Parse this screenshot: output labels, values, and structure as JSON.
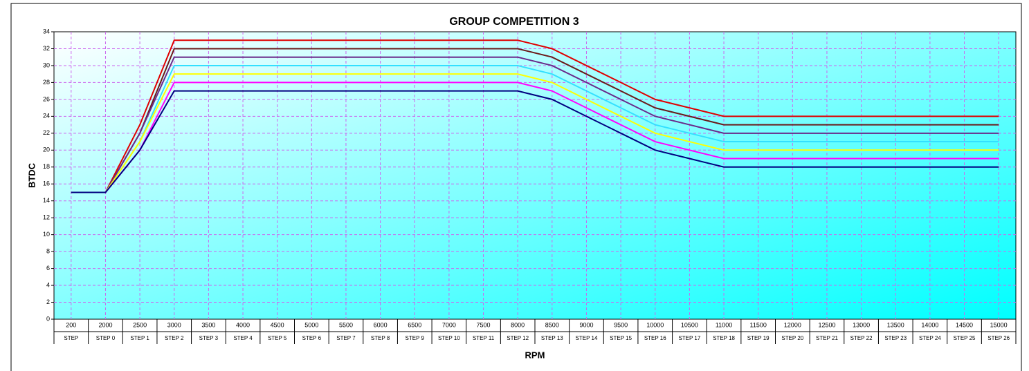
{
  "chart_data": {
    "type": "line",
    "title": "GROUP COMPETITION 3",
    "x_label": "RPM",
    "y_label": "BTDC",
    "categories": [
      "200",
      "2000",
      "2500",
      "3000",
      "3500",
      "4000",
      "4500",
      "5000",
      "5500",
      "6000",
      "6500",
      "7000",
      "7500",
      "8000",
      "8500",
      "9000",
      "9500",
      "10000",
      "10500",
      "11000",
      "11500",
      "12000",
      "12500",
      "13000",
      "13500",
      "14000",
      "14500",
      "15000"
    ],
    "steps": [
      "STEP",
      "STEP 0",
      "STEP 1",
      "STEP 2",
      "STEP 3",
      "STEP 4",
      "STEP 5",
      "STEP 6",
      "STEP 7",
      "STEP 8",
      "STEP 9",
      "STEP 10",
      "STEP 11",
      "STEP 12",
      "STEP 13",
      "STEP 14",
      "STEP 15",
      "STEP 16",
      "STEP 17",
      "STEP 18",
      "STEP 19",
      "STEP 20",
      "STEP 21",
      "STEP 22",
      "STEP 23",
      "STEP 24",
      "STEP 25",
      "STEP 26"
    ],
    "series": [
      {
        "color": "#e00000",
        "values": [
          15,
          15,
          23,
          33,
          33,
          33,
          33,
          33,
          33,
          33,
          33,
          33,
          33,
          33,
          32,
          30,
          28,
          26,
          25,
          24,
          24,
          24,
          24,
          24,
          24,
          24,
          24,
          24
        ]
      },
      {
        "color": "#6b1a1a",
        "values": [
          15,
          15,
          22,
          32,
          32,
          32,
          32,
          32,
          32,
          32,
          32,
          32,
          32,
          32,
          31,
          29,
          27,
          25,
          24,
          23,
          23,
          23,
          23,
          23,
          23,
          23,
          23,
          23
        ]
      },
      {
        "color": "#6a2a8a",
        "values": [
          15,
          15,
          22,
          31,
          31,
          31,
          31,
          31,
          31,
          31,
          31,
          31,
          31,
          31,
          30,
          28,
          26,
          24,
          23,
          22,
          22,
          22,
          22,
          22,
          22,
          22,
          22,
          22
        ]
      },
      {
        "color": "#33e0ff",
        "values": [
          15,
          15,
          21,
          30,
          30,
          30,
          30,
          30,
          30,
          30,
          30,
          30,
          30,
          30,
          29,
          27,
          25,
          23,
          22,
          21,
          21,
          21,
          21,
          21,
          21,
          21,
          21,
          21
        ]
      },
      {
        "color": "#ffff00",
        "values": [
          15,
          15,
          21,
          29,
          29,
          29,
          29,
          29,
          29,
          29,
          29,
          29,
          29,
          29,
          28,
          26,
          24,
          22,
          21,
          20,
          20,
          20,
          20,
          20,
          20,
          20,
          20,
          20
        ]
      },
      {
        "color": "#ff00ff",
        "values": [
          15,
          15,
          20,
          28,
          28,
          28,
          28,
          28,
          28,
          28,
          28,
          28,
          28,
          28,
          27,
          25,
          23,
          21,
          20,
          19,
          19,
          19,
          19,
          19,
          19,
          19,
          19,
          19
        ]
      },
      {
        "color": "#000080",
        "values": [
          15,
          15,
          20,
          27,
          27,
          27,
          27,
          27,
          27,
          27,
          27,
          27,
          27,
          27,
          26,
          24,
          22,
          20,
          19,
          18,
          18,
          18,
          18,
          18,
          18,
          18,
          18,
          18
        ]
      }
    ],
    "ylim": [
      0,
      34
    ],
    "yticks": [
      0,
      2,
      4,
      6,
      8,
      10,
      12,
      14,
      16,
      18,
      20,
      22,
      24,
      26,
      28,
      30,
      32,
      34
    ],
    "grid": true
  }
}
